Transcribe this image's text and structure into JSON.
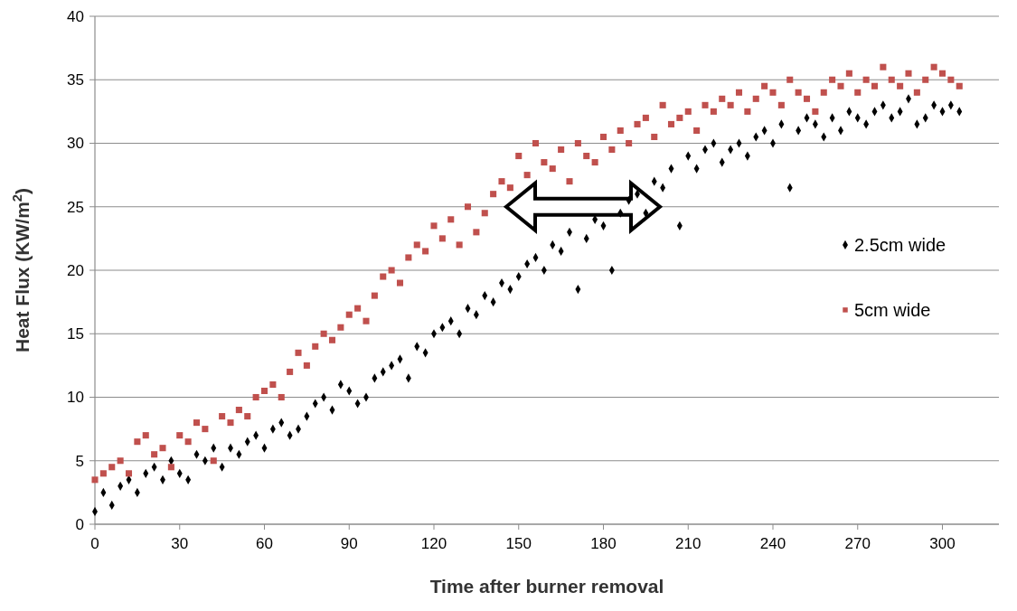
{
  "chart_data": {
    "type": "scatter",
    "xlabel": "Time after  burner  removal",
    "ylabel": "Heat Flux (KW/m$^{2}$)",
    "xlim": [
      0,
      320
    ],
    "xticks": [
      0,
      30,
      60,
      90,
      120,
      150,
      180,
      210,
      240,
      270,
      300
    ],
    "ylim": [
      0,
      40
    ],
    "yticks": [
      0,
      5,
      10,
      15,
      20,
      25,
      30,
      35,
      40
    ],
    "grid": "y",
    "legend": "right",
    "series": [
      {
        "name": "2.5cm wide",
        "color": "#000000",
        "marker": "diamond",
        "x": [
          0,
          3,
          6,
          9,
          12,
          15,
          18,
          21,
          24,
          27,
          30,
          33,
          36,
          39,
          42,
          45,
          48,
          51,
          54,
          57,
          60,
          63,
          66,
          69,
          72,
          75,
          78,
          81,
          84,
          87,
          90,
          93,
          96,
          99,
          102,
          105,
          108,
          111,
          114,
          117,
          120,
          123,
          126,
          129,
          132,
          135,
          138,
          141,
          144,
          147,
          150,
          153,
          156,
          159,
          162,
          165,
          168,
          171,
          174,
          177,
          180,
          183,
          186,
          189,
          192,
          195,
          198,
          201,
          204,
          207,
          210,
          213,
          216,
          219,
          222,
          225,
          228,
          231,
          234,
          237,
          240,
          243,
          246,
          249,
          252,
          255,
          258,
          261,
          264,
          267,
          270,
          273,
          276,
          279,
          282,
          285,
          288,
          291,
          294,
          297,
          300,
          303,
          306
        ],
        "values": [
          1,
          2.5,
          1.5,
          3,
          3.5,
          2.5,
          4,
          4.5,
          3.5,
          5,
          4,
          3.5,
          5.5,
          5,
          6,
          4.5,
          6,
          5.5,
          6.5,
          7,
          6,
          7.5,
          8,
          7,
          7.5,
          8.5,
          9.5,
          10,
          9,
          11,
          10.5,
          9.5,
          10,
          11.5,
          12,
          12.5,
          13,
          11.5,
          14,
          13.5,
          15,
          15.5,
          16,
          15,
          17,
          16.5,
          18,
          17.5,
          19,
          18.5,
          19.5,
          20.5,
          21,
          20,
          22,
          21.5,
          23,
          18.5,
          22.5,
          24,
          23.5,
          20,
          24.5,
          25.5,
          26,
          24.5,
          27,
          26.5,
          28,
          23.5,
          29,
          28,
          29.5,
          30,
          28.5,
          29.5,
          30,
          29,
          30.5,
          31,
          30,
          31.5,
          26.5,
          31,
          32,
          31.5,
          30.5,
          32,
          31,
          32.5,
          32,
          31.5,
          32.5,
          33,
          32,
          32.5,
          33.5,
          31.5,
          32,
          33,
          32.5,
          33,
          32.5
        ]
      },
      {
        "name": "5cm wide",
        "color": "#c0504d",
        "marker": "square",
        "x": [
          0,
          3,
          6,
          9,
          12,
          15,
          18,
          21,
          24,
          27,
          30,
          33,
          36,
          39,
          42,
          45,
          48,
          51,
          54,
          57,
          60,
          63,
          66,
          69,
          72,
          75,
          78,
          81,
          84,
          87,
          90,
          93,
          96,
          99,
          102,
          105,
          108,
          111,
          114,
          117,
          120,
          123,
          126,
          129,
          132,
          135,
          138,
          141,
          144,
          147,
          150,
          153,
          156,
          159,
          162,
          165,
          168,
          171,
          174,
          177,
          180,
          183,
          186,
          189,
          192,
          195,
          198,
          201,
          204,
          207,
          210,
          213,
          216,
          219,
          222,
          225,
          228,
          231,
          234,
          237,
          240,
          243,
          246,
          249,
          252,
          255,
          258,
          261,
          264,
          267,
          270,
          273,
          276,
          279,
          282,
          285,
          288,
          291,
          294,
          297,
          300,
          303,
          306
        ],
        "values": [
          3.5,
          4,
          4.5,
          5,
          4,
          6.5,
          7,
          5.5,
          6,
          4.5,
          7,
          6.5,
          8,
          7.5,
          5,
          8.5,
          8,
          9,
          8.5,
          10,
          10.5,
          11,
          10,
          12,
          13.5,
          12.5,
          14,
          15,
          14.5,
          15.5,
          16.5,
          17,
          16,
          18,
          19.5,
          20,
          19,
          21,
          22,
          21.5,
          23.5,
          22.5,
          24,
          22,
          25,
          23,
          24.5,
          26,
          27,
          26.5,
          29,
          27.5,
          30,
          28.5,
          28,
          29.5,
          27,
          30,
          29,
          28.5,
          30.5,
          29.5,
          31,
          30,
          31.5,
          32,
          30.5,
          33,
          31.5,
          32,
          32.5,
          31,
          33,
          32.5,
          33.5,
          33,
          34,
          32.5,
          33.5,
          34.5,
          34,
          33,
          35,
          34,
          33.5,
          32.5,
          34,
          35,
          34.5,
          35.5,
          34,
          35,
          34.5,
          36,
          35,
          34.5,
          35.5,
          34,
          35,
          36,
          35.5,
          35,
          34.5
        ]
      }
    ]
  }
}
